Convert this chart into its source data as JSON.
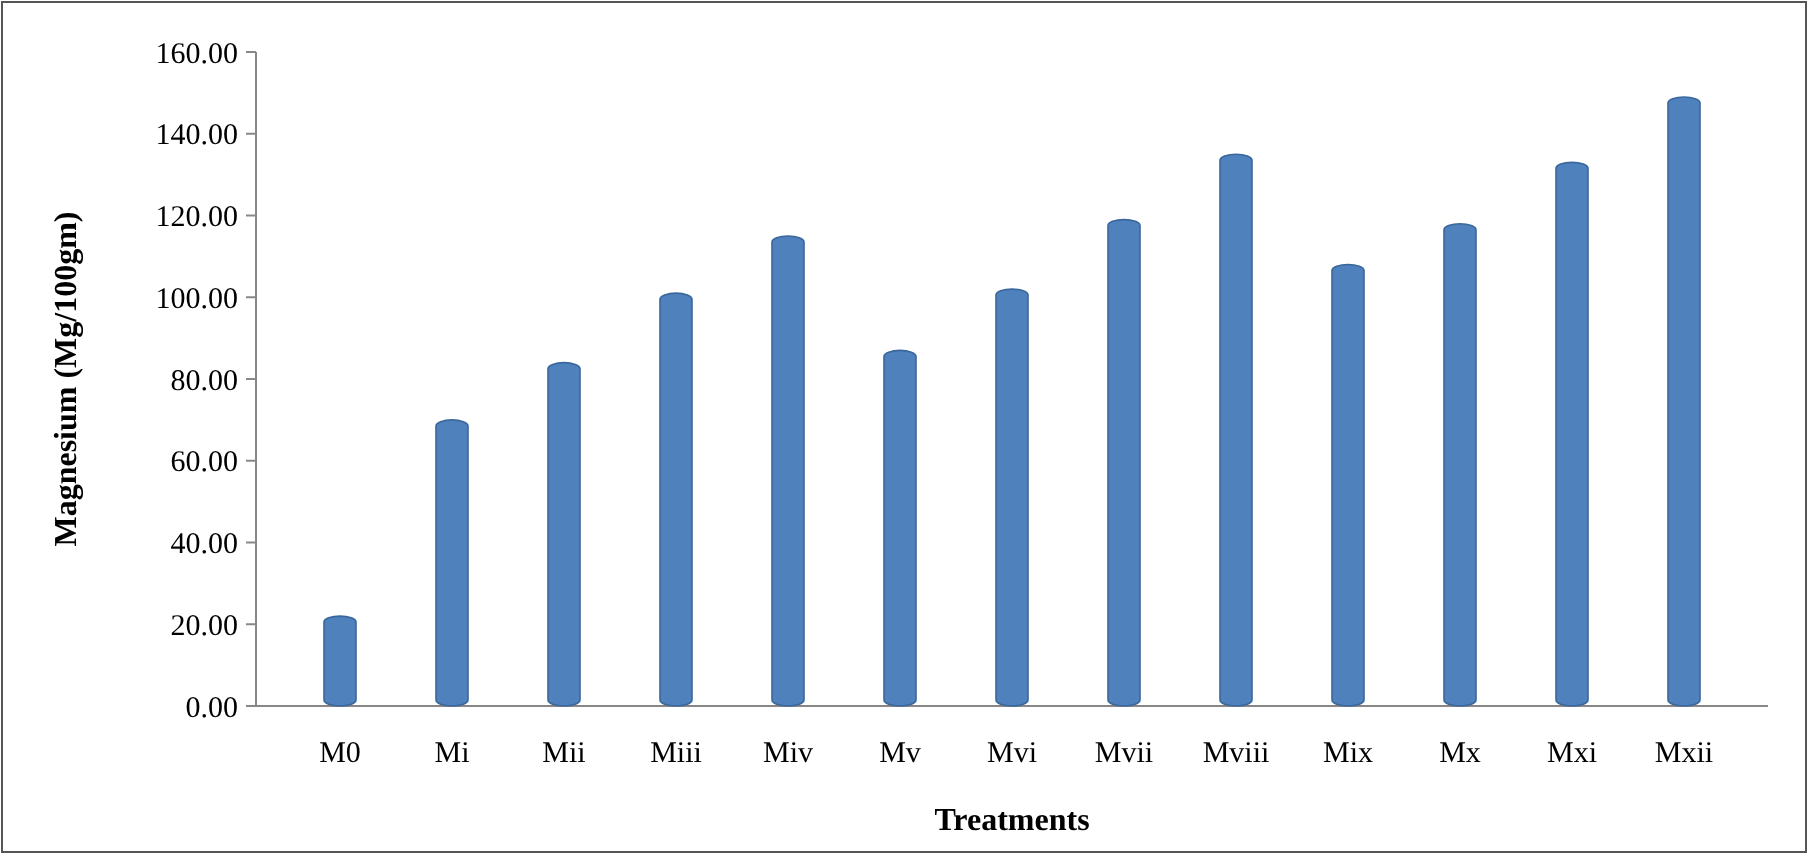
{
  "chart_data": {
    "type": "bar",
    "xlabel": "Treatments",
    "ylabel": "Magnesium (Mg/100gm)",
    "categories": [
      "M0",
      "Mi",
      "Mii",
      "Miii",
      "Miv",
      "Mv",
      "Mvi",
      "Mvii",
      "Mviii",
      "Mix",
      "Mx",
      "Mxi",
      "Mxii"
    ],
    "values": [
      22,
      70,
      84,
      101,
      115,
      87,
      102,
      119,
      135,
      108,
      118,
      133,
      149
    ],
    "color": "#4f81bd",
    "ylim": [
      0,
      160
    ],
    "yticks": [
      {
        "value": 0,
        "label": "0.00"
      },
      {
        "value": 20,
        "label": "20.00"
      },
      {
        "value": 40,
        "label": "40.00"
      },
      {
        "value": 60,
        "label": "60.00"
      },
      {
        "value": 80,
        "label": "80.00"
      },
      {
        "value": 100,
        "label": "100.00"
      },
      {
        "value": 120,
        "label": "120.00"
      },
      {
        "value": 140,
        "label": "140.00"
      },
      {
        "value": 160,
        "label": "160.00"
      }
    ],
    "grid": false
  }
}
